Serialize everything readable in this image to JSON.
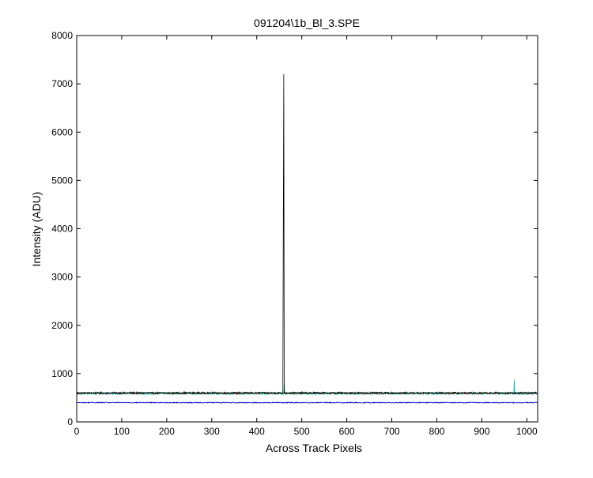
{
  "chart_data": {
    "type": "line",
    "title": "091204\\1b_Bl_3.SPE",
    "xlabel": "Across Track Pixels",
    "ylabel": "Intensity (ADU)",
    "xlim": [
      0,
      1024
    ],
    "ylim": [
      0,
      8000
    ],
    "xticks": [
      0,
      100,
      200,
      300,
      400,
      500,
      600,
      700,
      800,
      900,
      1000
    ],
    "yticks": [
      0,
      1000,
      2000,
      3000,
      4000,
      5000,
      6000,
      7000,
      8000
    ],
    "grid": false,
    "legend": "none",
    "series": [
      {
        "color": "#000000",
        "baseline": 600,
        "noise": 18,
        "spikes": [
          {
            "x": 460,
            "y": 7200
          },
          {
            "x": 459,
            "y": 4350
          }
        ]
      },
      {
        "color": "#ff0000",
        "baseline": 590,
        "noise": 16,
        "spikes": []
      },
      {
        "color": "#00aa00",
        "baseline": 595,
        "noise": 16,
        "spikes": []
      },
      {
        "color": "#00bfbf",
        "baseline": 585,
        "noise": 16,
        "spikes": [
          {
            "x": 972,
            "y": 880
          },
          {
            "x": 461,
            "y": 820
          }
        ]
      },
      {
        "color": "#0000cc",
        "baseline": 400,
        "noise": 10,
        "spikes": []
      }
    ]
  }
}
